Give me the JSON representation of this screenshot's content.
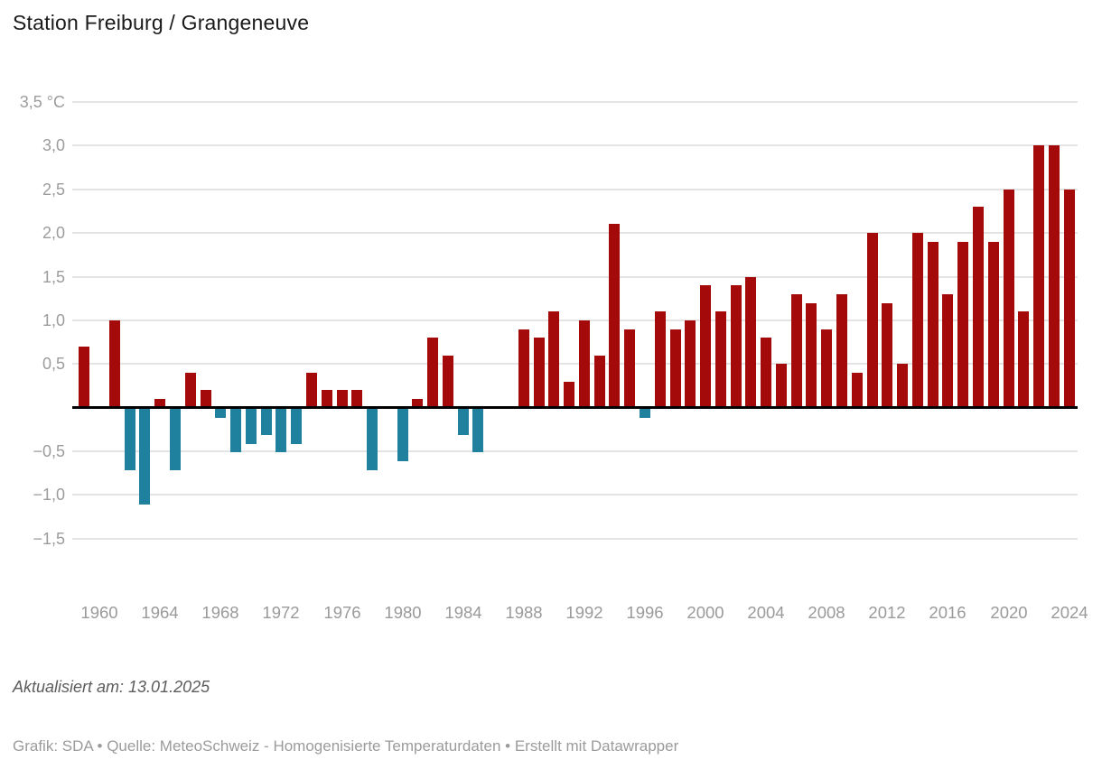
{
  "title": "Station Freiburg / Grangeneuve",
  "footer": {
    "updated": "Aktualisiert am: 13.01.2025",
    "credits": "Grafik: SDA • Quelle: MeteoSchweiz - Homogenisierte Temperaturdaten • Erstellt mit Datawrapper"
  },
  "chart_data": {
    "type": "bar",
    "title": "Station Freiburg / Grangeneuve",
    "unit": "°C",
    "categories": [
      1959,
      1960,
      1961,
      1962,
      1963,
      1964,
      1965,
      1966,
      1967,
      1968,
      1969,
      1970,
      1971,
      1972,
      1973,
      1974,
      1975,
      1976,
      1977,
      1978,
      1979,
      1980,
      1981,
      1982,
      1983,
      1984,
      1985,
      1986,
      1987,
      1988,
      1989,
      1990,
      1991,
      1992,
      1993,
      1994,
      1995,
      1996,
      1997,
      1998,
      1999,
      2000,
      2001,
      2002,
      2003,
      2004,
      2005,
      2006,
      2007,
      2008,
      2009,
      2010,
      2011,
      2012,
      2013,
      2014,
      2015,
      2016,
      2017,
      2018,
      2019,
      2020,
      2021,
      2022,
      2023,
      2024
    ],
    "values": [
      0.7,
      0,
      1.0,
      -0.7,
      -1.1,
      0.1,
      -0.7,
      0.4,
      0.2,
      -0.1,
      -0.5,
      -0.4,
      -0.3,
      -0.5,
      -0.4,
      0.4,
      0.2,
      0.2,
      0.2,
      -0.7,
      0,
      -0.6,
      0.1,
      0.8,
      0.6,
      -0.3,
      -0.5,
      0,
      0,
      0.9,
      0.8,
      1.1,
      0.3,
      1.0,
      0.6,
      2.1,
      0.9,
      -0.1,
      1.1,
      0.9,
      1.0,
      1.4,
      1.1,
      1.4,
      1.5,
      0.8,
      0.5,
      1.3,
      1.2,
      0.9,
      1.3,
      0.4,
      2.0,
      1.2,
      0.5,
      2.0,
      1.9,
      1.3,
      1.9,
      2.3,
      1.9,
      2.5,
      1.1,
      3.0,
      3.0,
      2.5
    ],
    "y_ticks": [
      {
        "value": 3.5,
        "label": "3,5 °C"
      },
      {
        "value": 3.0,
        "label": "3,0"
      },
      {
        "value": 2.5,
        "label": "2,5"
      },
      {
        "value": 2.0,
        "label": "2,0"
      },
      {
        "value": 1.5,
        "label": "1,5"
      },
      {
        "value": 1.0,
        "label": "1,0"
      },
      {
        "value": 0.5,
        "label": "0,5"
      },
      {
        "value": -0.5,
        "label": "−0,5"
      },
      {
        "value": -1.0,
        "label": "−1,0"
      },
      {
        "value": -1.5,
        "label": "−1,5"
      }
    ],
    "x_ticks": [
      1960,
      1964,
      1968,
      1972,
      1976,
      1980,
      1984,
      1988,
      1992,
      1996,
      2000,
      2004,
      2008,
      2012,
      2016,
      2020,
      2024
    ],
    "ylim": [
      -1.5,
      3.5
    ],
    "grid": "horizontal",
    "legend": "none",
    "colors": {
      "positive": "#a40a0a",
      "negative": "#20819e",
      "baseline": "#000000",
      "gridline": "#e4e4e4"
    }
  }
}
